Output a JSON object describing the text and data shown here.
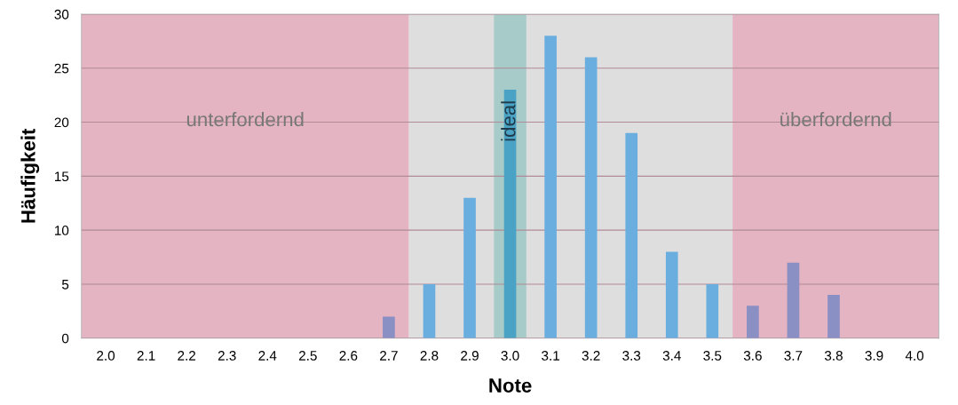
{
  "chart_data": {
    "type": "bar",
    "xlabel": "Note",
    "ylabel": "Häufigkeit",
    "x": [
      2.0,
      2.1,
      2.2,
      2.3,
      2.4,
      2.5,
      2.6,
      2.7,
      2.8,
      2.9,
      3.0,
      3.1,
      3.2,
      3.3,
      3.4,
      3.5,
      3.6,
      3.7,
      3.8,
      3.9,
      4.0
    ],
    "values": [
      0,
      0,
      0,
      0,
      0,
      0,
      0,
      2,
      5,
      13,
      23,
      28,
      26,
      19,
      8,
      5,
      3,
      7,
      4,
      0,
      0
    ],
    "colors": [
      "#8a8fc4",
      "#8a8fc4",
      "#8a8fc4",
      "#8a8fc4",
      "#8a8fc4",
      "#8a8fc4",
      "#8a8fc4",
      "#8a8fc4",
      "#6aaee0",
      "#6aaee0",
      "#4aa3c4",
      "#6aaee0",
      "#6aaee0",
      "#6aaee0",
      "#6aaee0",
      "#6aaee0",
      "#8a8fc4",
      "#8a8fc4",
      "#8a8fc4",
      "#8a8fc4",
      "#8a8fc4"
    ],
    "xlim": [
      1.94,
      4.06
    ],
    "xticks": [
      {
        "value": 2.0,
        "label": "2.0"
      },
      {
        "value": 2.1,
        "label": "2.1"
      },
      {
        "value": 2.2,
        "label": "2.2"
      },
      {
        "value": 2.3,
        "label": "2.3"
      },
      {
        "value": 2.4,
        "label": "2.4"
      },
      {
        "value": 2.5,
        "label": "2.5"
      },
      {
        "value": 2.6,
        "label": "2.6"
      },
      {
        "value": 2.7,
        "label": "2.7"
      },
      {
        "value": 2.8,
        "label": "2.8"
      },
      {
        "value": 2.9,
        "label": "2.9"
      },
      {
        "value": 3.0,
        "label": "3.0"
      },
      {
        "value": 3.1,
        "label": "3.1"
      },
      {
        "value": 3.2,
        "label": "3.2"
      },
      {
        "value": 3.3,
        "label": "3.3"
      },
      {
        "value": 3.4,
        "label": "3.4"
      },
      {
        "value": 3.5,
        "label": "3.5"
      },
      {
        "value": 3.6,
        "label": "3.6"
      },
      {
        "value": 3.7,
        "label": "3.7"
      },
      {
        "value": 3.8,
        "label": "3.8"
      },
      {
        "value": 3.9,
        "label": "3.9"
      },
      {
        "value": 4.0,
        "label": "4.0"
      }
    ],
    "ylim": [
      0,
      30
    ],
    "yticks": [
      0,
      5,
      10,
      15,
      20,
      25,
      30
    ],
    "grid": "y",
    "bands": [
      {
        "axis": "x",
        "from": 1.94,
        "to": 2.75,
        "label": "unterfordernd",
        "color": "#e4b4c3"
      },
      {
        "axis": "x",
        "from": 2.75,
        "to": 3.55,
        "label": null,
        "color": "#dedede"
      },
      {
        "axis": "x",
        "from": 2.96,
        "to": 3.04,
        "label": "ideal",
        "color": "#a6cbc8"
      },
      {
        "axis": "x",
        "from": 3.55,
        "to": 4.06,
        "label": "überfordernd",
        "color": "#e4b4c3"
      }
    ]
  }
}
